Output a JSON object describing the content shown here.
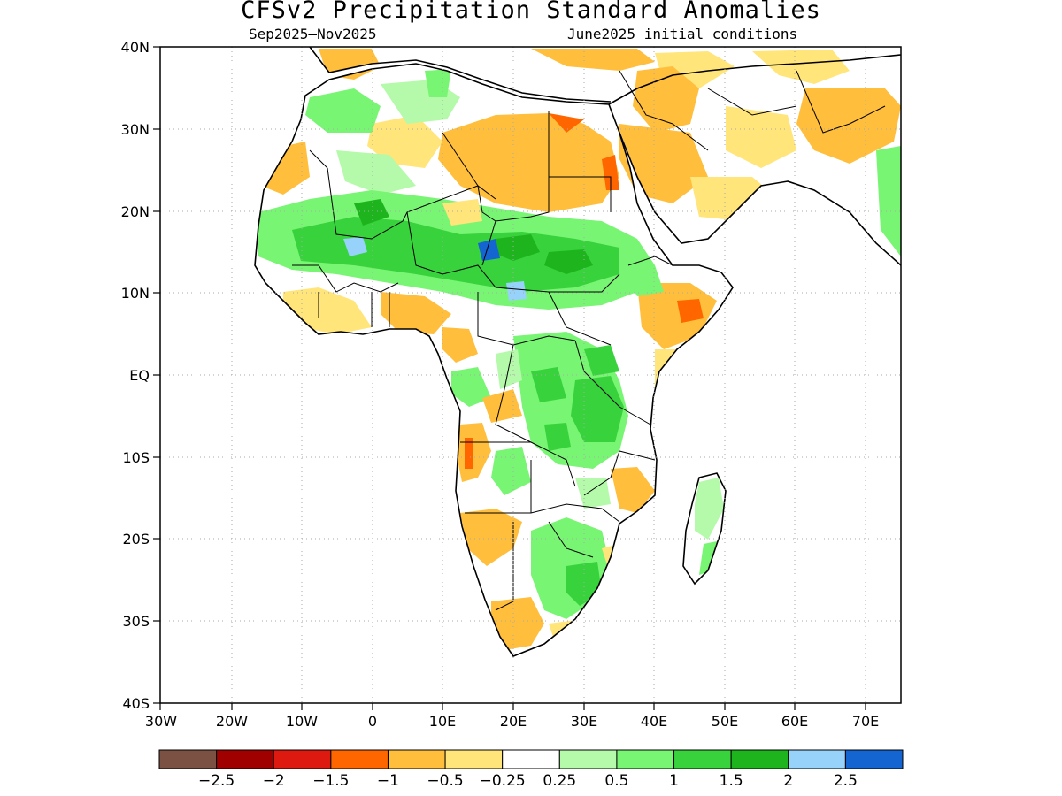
{
  "title": "CFSv2 Precipitation Standard Anomalies",
  "period": "Sep2025–Nov2025",
  "init": "June2025 initial conditions",
  "lat_labels": [
    "40N",
    "30N",
    "20N",
    "10N",
    "EQ",
    "10S",
    "20S",
    "30S",
    "40S"
  ],
  "lon_labels": [
    "30W",
    "20W",
    "10W",
    "0",
    "10E",
    "20E",
    "30E",
    "40E",
    "50E",
    "60E",
    "70E"
  ],
  "colorbar": {
    "colors": [
      "#7b5143",
      "#a00000",
      "#de1a10",
      "#ff6600",
      "#ffbe3c",
      "#ffe57a",
      "#ffffff",
      "#b4faaa",
      "#78f573",
      "#37d23c",
      "#1eb41e",
      "#96d2fa",
      "#1464d2"
    ],
    "labels": [
      "-2.5",
      "-2",
      "-1.5",
      "-1",
      "-0.5",
      "-0.25",
      "0.25",
      "0.5",
      "1",
      "1.5",
      "2",
      "2.5"
    ]
  },
  "icons": [
    "africa-coastline",
    "country-borders",
    "anomaly-shading"
  ]
}
